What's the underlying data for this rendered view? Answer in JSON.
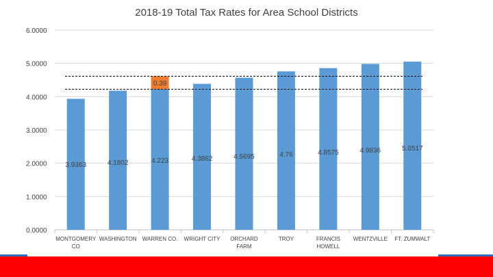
{
  "chart_data": {
    "type": "bar",
    "title": "2018-19 Total Tax Rates for Area School Districts",
    "xlabel": "",
    "ylabel": "",
    "ylim": [
      0,
      6
    ],
    "yticks": [
      "0.0000",
      "1.0000",
      "2.0000",
      "3.0000",
      "4.0000",
      "5.0000",
      "6.0000"
    ],
    "categories": [
      [
        "MONTGOMERY",
        "CO"
      ],
      [
        "WASHINGTON"
      ],
      [
        "WARREN CO."
      ],
      [
        "WRIGHT CITY"
      ],
      [
        "ORCHARD",
        "FARM"
      ],
      [
        "TROY"
      ],
      [
        "FRANCIS",
        "HOWELL"
      ],
      [
        "WENTZVILLE"
      ],
      [
        "FT. ZUMWALT"
      ]
    ],
    "values": [
      3.9363,
      4.1802,
      4.223,
      4.3862,
      4.5695,
      4.76,
      4.8575,
      4.9836,
      5.0517
    ],
    "data_labels": [
      "3.9363",
      "4.1802",
      "4.223",
      "4.3862",
      "4.5695",
      "4.76",
      "4.8575",
      "4.9836",
      "5.0517"
    ],
    "stacked_segment": {
      "category_index": 2,
      "base": 4.223,
      "value": 0.39,
      "label": "0.39"
    },
    "reference_lines": [
      4.223,
      4.613
    ],
    "bar_color": "#5b9bd5",
    "segment_color": "#ed7d31",
    "gridlines": true
  }
}
